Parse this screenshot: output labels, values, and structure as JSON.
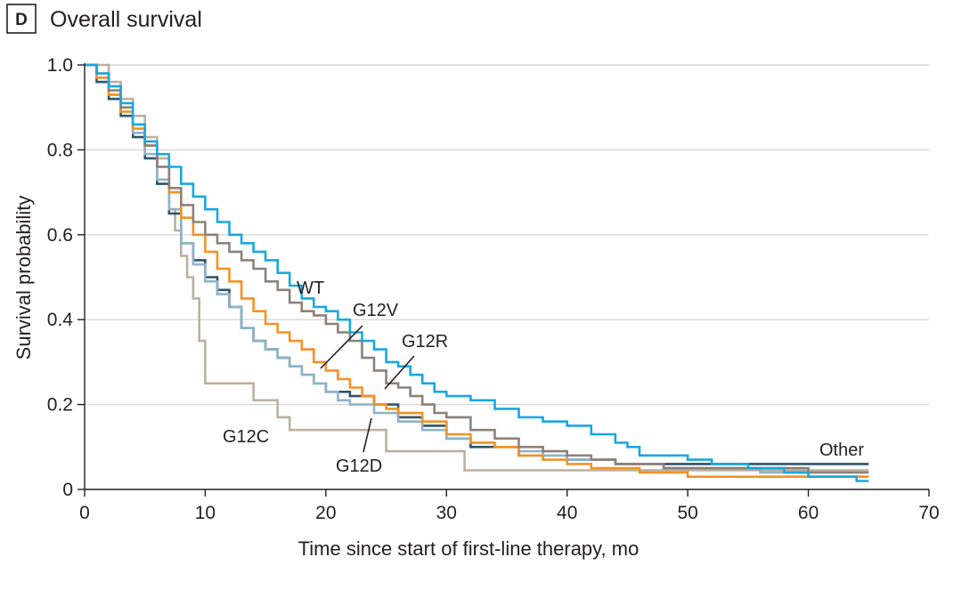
{
  "panel": {
    "letter": "D",
    "title": "Overall survival"
  },
  "chart_data": {
    "type": "line",
    "title": "Overall survival",
    "xlabel": "Time since start of first-line therapy, mo",
    "ylabel": "Survival probability",
    "xlim": [
      0,
      70
    ],
    "ylim": [
      0,
      1.0
    ],
    "xticks": [
      0,
      10,
      20,
      30,
      40,
      50,
      60,
      70
    ],
    "yticks": [
      0,
      0.2,
      0.4,
      0.6,
      0.8,
      1.0
    ],
    "xtick_labels": [
      "0",
      "10",
      "20",
      "30",
      "40",
      "50",
      "60",
      "70"
    ],
    "ytick_labels": [
      "0",
      "0.2",
      "0.4",
      "0.6",
      "0.8",
      "1.0"
    ],
    "grid": "horizontal",
    "step": true,
    "series": [
      {
        "name": "WT",
        "color": "#1aa7e0",
        "x": [
          0,
          1,
          2,
          3,
          4,
          5,
          6,
          7,
          8,
          9,
          10,
          11,
          12,
          13,
          14,
          15,
          16,
          17,
          18,
          19,
          20,
          21,
          22,
          23,
          24,
          25,
          26,
          27,
          28,
          29,
          30,
          32,
          34,
          36,
          38,
          40,
          42,
          44,
          45,
          46,
          48,
          50,
          52,
          55,
          58,
          60,
          62,
          64,
          65
        ],
        "y": [
          1.0,
          0.98,
          0.95,
          0.91,
          0.86,
          0.82,
          0.79,
          0.76,
          0.72,
          0.69,
          0.66,
          0.63,
          0.6,
          0.58,
          0.56,
          0.54,
          0.51,
          0.48,
          0.45,
          0.43,
          0.42,
          0.4,
          0.37,
          0.35,
          0.33,
          0.3,
          0.29,
          0.27,
          0.25,
          0.23,
          0.22,
          0.21,
          0.19,
          0.17,
          0.16,
          0.15,
          0.13,
          0.11,
          0.1,
          0.08,
          0.08,
          0.07,
          0.06,
          0.05,
          0.04,
          0.03,
          0.03,
          0.02,
          0.02
        ]
      },
      {
        "name": "G12R",
        "color": "#8c8279",
        "x": [
          0,
          1,
          2,
          3,
          4,
          5,
          6,
          7,
          8,
          9,
          10,
          11,
          12,
          13,
          14,
          15,
          16,
          17,
          18,
          19,
          20,
          21,
          22,
          23,
          24,
          25,
          26,
          27,
          28,
          29,
          30,
          32,
          34,
          36,
          38,
          40,
          42,
          44,
          48,
          52,
          56,
          60,
          65
        ],
        "y": [
          1.0,
          0.98,
          0.94,
          0.9,
          0.86,
          0.81,
          0.76,
          0.71,
          0.67,
          0.63,
          0.6,
          0.58,
          0.56,
          0.54,
          0.52,
          0.49,
          0.47,
          0.44,
          0.42,
          0.41,
          0.39,
          0.37,
          0.35,
          0.31,
          0.28,
          0.25,
          0.24,
          0.22,
          0.2,
          0.18,
          0.17,
          0.14,
          0.12,
          0.1,
          0.09,
          0.08,
          0.07,
          0.06,
          0.05,
          0.05,
          0.05,
          0.04,
          0.04
        ]
      },
      {
        "name": "G12V",
        "color": "#f39224",
        "x": [
          0,
          1,
          2,
          3,
          4,
          5,
          6,
          7,
          8,
          9,
          10,
          11,
          12,
          13,
          14,
          15,
          16,
          17,
          18,
          19,
          20,
          21,
          22,
          23,
          24,
          25,
          26,
          28,
          30,
          32,
          34,
          36,
          38,
          40,
          42,
          44,
          46,
          50,
          55,
          60,
          65
        ],
        "y": [
          1.0,
          0.97,
          0.93,
          0.89,
          0.85,
          0.81,
          0.76,
          0.7,
          0.64,
          0.6,
          0.56,
          0.52,
          0.49,
          0.45,
          0.42,
          0.39,
          0.37,
          0.35,
          0.33,
          0.3,
          0.28,
          0.26,
          0.24,
          0.22,
          0.2,
          0.19,
          0.18,
          0.16,
          0.13,
          0.11,
          0.1,
          0.08,
          0.07,
          0.06,
          0.05,
          0.05,
          0.04,
          0.03,
          0.03,
          0.03,
          0.03
        ]
      },
      {
        "name": "G12D",
        "color": "#8fb3c9",
        "x": [
          0,
          1,
          2,
          3,
          4,
          5,
          6,
          7,
          8,
          9,
          10,
          11,
          12,
          13,
          14,
          15,
          16,
          17,
          18,
          19,
          20,
          21,
          22,
          24,
          26,
          28,
          30,
          32,
          34,
          36,
          38,
          40,
          44,
          48,
          52,
          56,
          60,
          65
        ],
        "y": [
          1.0,
          0.97,
          0.93,
          0.89,
          0.84,
          0.79,
          0.73,
          0.66,
          0.58,
          0.53,
          0.49,
          0.46,
          0.43,
          0.38,
          0.35,
          0.33,
          0.31,
          0.29,
          0.27,
          0.25,
          0.23,
          0.21,
          0.2,
          0.18,
          0.16,
          0.14,
          0.12,
          0.11,
          0.1,
          0.09,
          0.08,
          0.07,
          0.06,
          0.05,
          0.05,
          0.04,
          0.03,
          0.03
        ]
      },
      {
        "name": "Other",
        "color": "#2f5468",
        "x": [
          0,
          1,
          2,
          3,
          4,
          5,
          6,
          7,
          8,
          9,
          10,
          11,
          12,
          13,
          14,
          15,
          16,
          17,
          18,
          19,
          20,
          21,
          22,
          24,
          26,
          28,
          30,
          32,
          34,
          36,
          40,
          44,
          48,
          52,
          56,
          60,
          65
        ],
        "y": [
          1.0,
          0.96,
          0.92,
          0.88,
          0.83,
          0.78,
          0.72,
          0.65,
          0.58,
          0.54,
          0.5,
          0.47,
          0.43,
          0.38,
          0.35,
          0.33,
          0.31,
          0.29,
          0.27,
          0.25,
          0.23,
          0.23,
          0.22,
          0.2,
          0.17,
          0.15,
          0.12,
          0.1,
          0.1,
          0.08,
          0.07,
          0.06,
          0.06,
          0.06,
          0.06,
          0.06,
          0.06
        ]
      },
      {
        "name": "G12C",
        "color": "#bcb09f",
        "x": [
          0,
          1,
          2,
          3,
          4,
          5,
          6,
          7,
          7.5,
          8,
          8.5,
          9,
          9.5,
          10,
          11,
          14,
          16,
          17,
          25,
          31,
          31.5,
          42,
          60,
          65
        ],
        "y": [
          1.0,
          1.0,
          0.96,
          0.92,
          0.88,
          0.83,
          0.78,
          0.66,
          0.61,
          0.55,
          0.5,
          0.45,
          0.35,
          0.25,
          0.25,
          0.21,
          0.17,
          0.14,
          0.09,
          0.09,
          0.045,
          0.045,
          0.045,
          0.045
        ]
      }
    ],
    "annotations": [
      {
        "text": "WT",
        "series": "WT"
      },
      {
        "text": "G12V",
        "series": "G12V"
      },
      {
        "text": "G12R",
        "series": "G12R"
      },
      {
        "text": "G12C",
        "series": "G12C"
      },
      {
        "text": "G12D",
        "series": "G12D"
      },
      {
        "text": "Other",
        "series": "Other"
      }
    ]
  }
}
